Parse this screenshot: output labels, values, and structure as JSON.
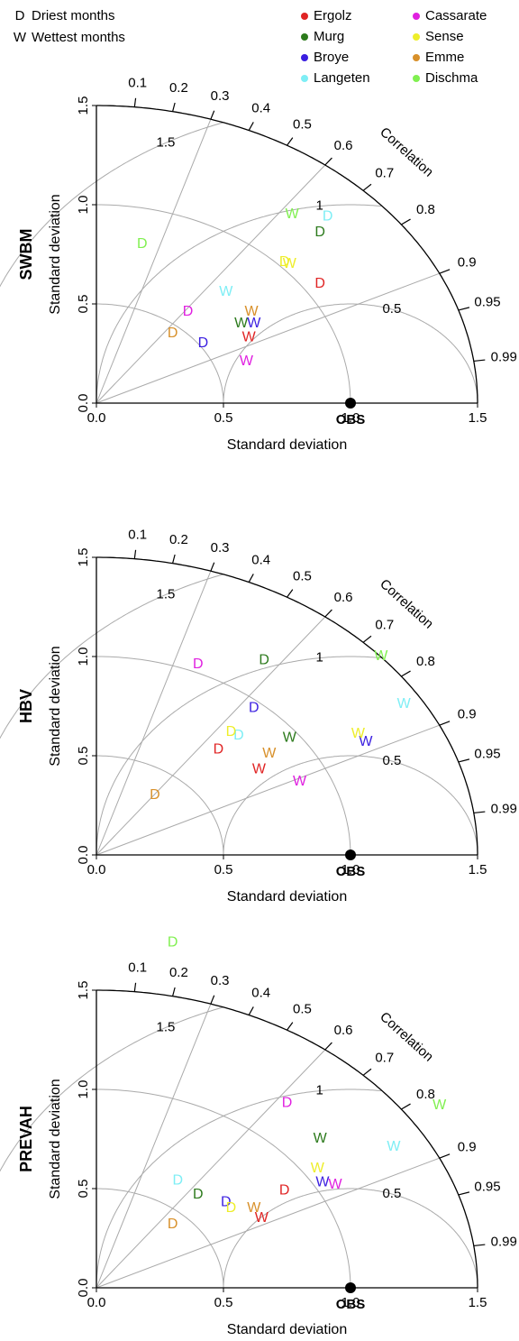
{
  "legend": {
    "markers": [
      {
        "symbol": "D",
        "label": "Driest months"
      },
      {
        "symbol": "W",
        "label": "Wettest months"
      }
    ]
  },
  "chart_data": [
    {
      "type": "taylor",
      "model": "SWBM",
      "xlabel": "Standard deviation",
      "ylabel": "Standard deviation",
      "xlim": [
        0,
        1.5
      ],
      "ylim": [
        0,
        1.5
      ],
      "xticks": [
        {
          "value": 0,
          "label": "0.0"
        },
        0.5,
        {
          "value": 1,
          "label": "1.0"
        },
        1.5
      ],
      "yticks": [
        {
          "value": 0,
          "label": "0.0"
        },
        0.5,
        {
          "value": 1,
          "label": "1.0"
        },
        1.5
      ],
      "correlation_label": "Correlation",
      "correlation_ticks": [
        0.1,
        0.2,
        0.3,
        0.4,
        0.5,
        0.6,
        0.7,
        0.8,
        0.9,
        0.95,
        0.99
      ],
      "correlation_grid": [
        0.3,
        0.6,
        0.9
      ],
      "rms_ticks": [
        0.5,
        1,
        1.5
      ],
      "obs": {
        "label": "OBS",
        "x": 1,
        "y": 0
      },
      "series": [
        {
          "name": "Ergolz",
          "color": "#e02424",
          "points": [
            {
              "marker": "D",
              "x": 0.88,
              "y": 0.6
            },
            {
              "marker": "W",
              "x": 0.6,
              "y": 0.33
            }
          ]
        },
        {
          "name": "Murg",
          "color": "#2c7a1c",
          "points": [
            {
              "marker": "D",
              "x": 0.88,
              "y": 0.86
            },
            {
              "marker": "W",
              "x": 0.57,
              "y": 0.4
            }
          ]
        },
        {
          "name": "Broye",
          "color": "#3a1ee0",
          "points": [
            {
              "marker": "D",
              "x": 0.42,
              "y": 0.3
            },
            {
              "marker": "W",
              "x": 0.62,
              "y": 0.4
            }
          ]
        },
        {
          "name": "Langeten",
          "color": "#7eeef5",
          "points": [
            {
              "marker": "D",
              "x": 0.91,
              "y": 0.94
            },
            {
              "marker": "W",
              "x": 0.51,
              "y": 0.56
            }
          ]
        },
        {
          "name": "Cassarate",
          "color": "#e020e0",
          "points": [
            {
              "marker": "D",
              "x": 0.36,
              "y": 0.46
            },
            {
              "marker": "W",
              "x": 0.59,
              "y": 0.21
            }
          ]
        },
        {
          "name": "Sense",
          "color": "#eeee2a",
          "points": [
            {
              "marker": "D",
              "x": 0.74,
              "y": 0.71
            },
            {
              "marker": "W",
              "x": 0.76,
              "y": 0.7
            }
          ]
        },
        {
          "name": "Emme",
          "color": "#d8902a",
          "points": [
            {
              "marker": "D",
              "x": 0.3,
              "y": 0.35
            },
            {
              "marker": "W",
              "x": 0.61,
              "y": 0.46
            }
          ]
        },
        {
          "name": "Dischma",
          "color": "#80f050",
          "points": [
            {
              "marker": "D",
              "x": 0.18,
              "y": 0.8
            },
            {
              "marker": "W",
              "x": 0.77,
              "y": 0.95
            }
          ]
        }
      ]
    },
    {
      "type": "taylor",
      "model": "HBV",
      "xlabel": "Standard deviation",
      "ylabel": "Standard deviation",
      "xlim": [
        0,
        1.5
      ],
      "ylim": [
        0,
        1.5
      ],
      "xticks": [
        {
          "value": 0,
          "label": "0.0"
        },
        0.5,
        {
          "value": 1,
          "label": "1.0"
        },
        1.5
      ],
      "yticks": [
        {
          "value": 0,
          "label": "0.0"
        },
        0.5,
        {
          "value": 1,
          "label": "1.0"
        },
        1.5
      ],
      "correlation_label": "Correlation",
      "correlation_ticks": [
        0.1,
        0.2,
        0.3,
        0.4,
        0.5,
        0.6,
        0.7,
        0.8,
        0.9,
        0.95,
        0.99
      ],
      "correlation_grid": [
        0.3,
        0.6,
        0.9
      ],
      "rms_ticks": [
        0.5,
        1,
        1.5
      ],
      "obs": {
        "label": "OBS",
        "x": 1,
        "y": 0
      },
      "series": [
        {
          "name": "Ergolz",
          "color": "#e02424",
          "points": [
            {
              "marker": "D",
              "x": 0.48,
              "y": 0.53
            },
            {
              "marker": "W",
              "x": 0.64,
              "y": 0.43
            }
          ]
        },
        {
          "name": "Murg",
          "color": "#2c7a1c",
          "points": [
            {
              "marker": "D",
              "x": 0.66,
              "y": 0.98
            },
            {
              "marker": "W",
              "x": 0.76,
              "y": 0.59
            }
          ]
        },
        {
          "name": "Broye",
          "color": "#3a1ee0",
          "points": [
            {
              "marker": "D",
              "x": 0.62,
              "y": 0.74
            },
            {
              "marker": "W",
              "x": 1.06,
              "y": 0.57
            }
          ]
        },
        {
          "name": "Langeten",
          "color": "#7eeef5",
          "points": [
            {
              "marker": "D",
              "x": 0.56,
              "y": 0.6
            },
            {
              "marker": "W",
              "x": 1.21,
              "y": 0.76
            }
          ]
        },
        {
          "name": "Cassarate",
          "color": "#e020e0",
          "points": [
            {
              "marker": "D",
              "x": 0.4,
              "y": 0.96
            },
            {
              "marker": "W",
              "x": 0.8,
              "y": 0.37
            }
          ]
        },
        {
          "name": "Sense",
          "color": "#eeee2a",
          "points": [
            {
              "marker": "D",
              "x": 0.53,
              "y": 0.62
            },
            {
              "marker": "W",
              "x": 1.03,
              "y": 0.61
            }
          ]
        },
        {
          "name": "Emme",
          "color": "#d8902a",
          "points": [
            {
              "marker": "D",
              "x": 0.23,
              "y": 0.3
            },
            {
              "marker": "W",
              "x": 0.68,
              "y": 0.51
            }
          ]
        },
        {
          "name": "Dischma",
          "color": "#80f050",
          "points": [
            {
              "marker": "W",
              "x": 1.12,
              "y": 1.0
            }
          ]
        }
      ]
    },
    {
      "type": "taylor",
      "model": "PREVAH",
      "xlabel": "Standard deviation",
      "ylabel": "Standard deviation",
      "xlim": [
        0,
        1.5
      ],
      "ylim": [
        0,
        1.5
      ],
      "xticks": [
        {
          "value": 0,
          "label": "0.0"
        },
        0.5,
        {
          "value": 1,
          "label": "1.0"
        },
        1.5
      ],
      "yticks": [
        {
          "value": 0,
          "label": "0.0"
        },
        0.5,
        {
          "value": 1,
          "label": "1.0"
        },
        1.5
      ],
      "correlation_label": "Correlation",
      "correlation_ticks": [
        0.1,
        0.2,
        0.3,
        0.4,
        0.5,
        0.6,
        0.7,
        0.8,
        0.9,
        0.95,
        0.99
      ],
      "correlation_grid": [
        0.3,
        0.6,
        0.9
      ],
      "rms_ticks": [
        0.5,
        1,
        1.5
      ],
      "obs": {
        "label": "OBS",
        "x": 1,
        "y": 0
      },
      "series": [
        {
          "name": "Ergolz",
          "color": "#e02424",
          "points": [
            {
              "marker": "D",
              "x": 0.74,
              "y": 0.49
            },
            {
              "marker": "W",
              "x": 0.65,
              "y": 0.35
            }
          ]
        },
        {
          "name": "Murg",
          "color": "#2c7a1c",
          "points": [
            {
              "marker": "D",
              "x": 0.4,
              "y": 0.47
            },
            {
              "marker": "W",
              "x": 0.88,
              "y": 0.75
            }
          ]
        },
        {
          "name": "Broye",
          "color": "#3a1ee0",
          "points": [
            {
              "marker": "D",
              "x": 0.51,
              "y": 0.43
            },
            {
              "marker": "W",
              "x": 0.89,
              "y": 0.53
            }
          ]
        },
        {
          "name": "Langeten",
          "color": "#7eeef5",
          "points": [
            {
              "marker": "D",
              "x": 0.32,
              "y": 0.54
            },
            {
              "marker": "W",
              "x": 1.17,
              "y": 0.71
            }
          ]
        },
        {
          "name": "Cassarate",
          "color": "#e020e0",
          "points": [
            {
              "marker": "D",
              "x": 0.75,
              "y": 0.93
            },
            {
              "marker": "W",
              "x": 0.94,
              "y": 0.52
            }
          ]
        },
        {
          "name": "Sense",
          "color": "#eeee2a",
          "points": [
            {
              "marker": "D",
              "x": 0.53,
              "y": 0.4
            },
            {
              "marker": "W",
              "x": 0.87,
              "y": 0.6
            }
          ]
        },
        {
          "name": "Emme",
          "color": "#d8902a",
          "points": [
            {
              "marker": "D",
              "x": 0.3,
              "y": 0.32
            },
            {
              "marker": "W",
              "x": 0.62,
              "y": 0.4
            }
          ]
        },
        {
          "name": "Dischma",
          "color": "#80f050",
          "points": [
            {
              "marker": "D",
              "x": 0.3,
              "y": 1.74
            },
            {
              "marker": "W",
              "x": 1.35,
              "y": 0.92
            }
          ]
        }
      ]
    }
  ]
}
